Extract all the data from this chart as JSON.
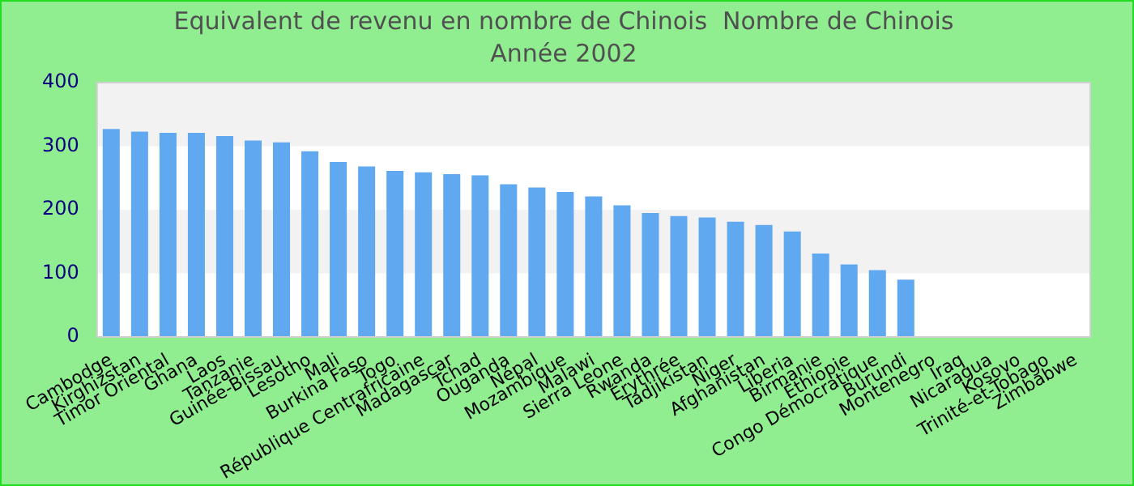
{
  "chart_data": {
    "type": "bar",
    "title": "Equivalent de revenu en nombre de Chinois  Nombre de Chinois",
    "subtitle": "Année 2002",
    "categories": [
      "Cambodge",
      "Kirghizstan",
      "Timor Oriental",
      "Ghana",
      "Laos",
      "Tanzanie",
      "Guinée-Bissau",
      "Lesotho",
      "Mali",
      "Burkina Faso",
      "Togo",
      "République Centrafricaine",
      "Madagascar",
      "Tchad",
      "Ouganda",
      "Népal",
      "Mozambique",
      "Malawi",
      "Sierra Leone",
      "Rwanda",
      "Érythrée",
      "Tadjikistan",
      "Niger",
      "Afghanistan",
      "Liberia",
      "Birmanie",
      "Éthiopie",
      "Congo Démocratique",
      "Burundi",
      "Montenegro",
      "Iraq",
      "Nicaragua",
      "Kosovo",
      "Trinité-et-Tobago",
      "Zimbabwe"
    ],
    "values": [
      327,
      323,
      321,
      321,
      316,
      309,
      306,
      292,
      275,
      268,
      261,
      259,
      256,
      254,
      240,
      235,
      228,
      221,
      207,
      195,
      190,
      188,
      181,
      176,
      166,
      131,
      114,
      105,
      90,
      null,
      null,
      null,
      null,
      null,
      null
    ],
    "color": "#60a8f0",
    "ylim": [
      0,
      400
    ],
    "yticks": [
      0,
      100,
      200,
      300,
      400
    ]
  }
}
